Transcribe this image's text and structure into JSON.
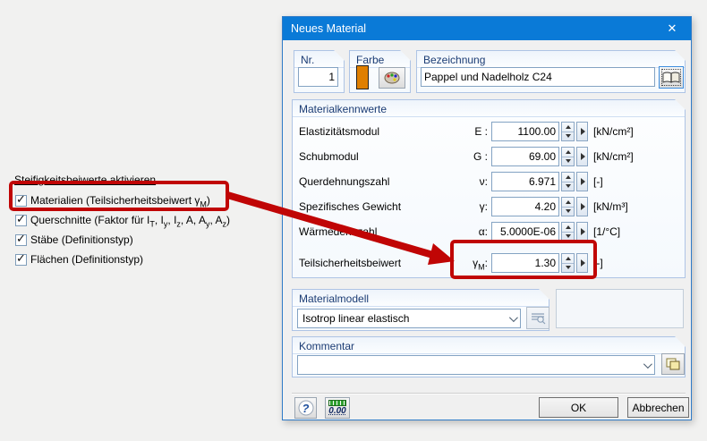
{
  "icons": {
    "check": "✓",
    "close": "✕",
    "help": "?"
  },
  "colors": {
    "title_bar": "#0a7ad7",
    "annotation_red": "#c00505",
    "material_swatch": "#e07f00"
  },
  "annotation": {
    "header_label": "Steifigkeitsbeiwerte aktivieren",
    "checkboxes": [
      {
        "checked": true,
        "label_parts": [
          {
            "t": "Materialien (Teilsicherheitsbeiwert "
          },
          {
            "t": "γ"
          },
          {
            "t": "M",
            "sub": true
          },
          {
            "t": ")"
          }
        ]
      },
      {
        "checked": true,
        "label_parts": [
          {
            "t": "Querschnitte (Faktor für I"
          },
          {
            "t": "T",
            "sub": true
          },
          {
            "t": ", I"
          },
          {
            "t": "y",
            "sub": true
          },
          {
            "t": ", I"
          },
          {
            "t": "z",
            "sub": true
          },
          {
            "t": ", A, A"
          },
          {
            "t": "y",
            "sub": true
          },
          {
            "t": ", A"
          },
          {
            "t": "z",
            "sub": true
          },
          {
            "t": ")"
          }
        ]
      },
      {
        "checked": true,
        "label_parts": [
          {
            "t": "Stäbe (Definitionstyp)"
          }
        ]
      },
      {
        "checked": true,
        "label_parts": [
          {
            "t": "Flächen (Definitionstyp)"
          }
        ]
      }
    ]
  },
  "dialog": {
    "title": "Neues Material",
    "nr": {
      "label": "Nr.",
      "value": "1"
    },
    "farbe": {
      "label": "Farbe"
    },
    "bezeichnung": {
      "label": "Bezeichnung",
      "value": "Pappel und Nadelholz C24"
    },
    "materialkennwerte": {
      "title": "Materialkennwerte",
      "rows": [
        {
          "label": "Elastizitätsmodul",
          "symbol_parts": [
            {
              "t": "E :"
            }
          ],
          "value": "1100.00",
          "unit": "[kN/cm²]"
        },
        {
          "label": "Schubmodul",
          "symbol_parts": [
            {
              "t": "G :"
            }
          ],
          "value": "69.00",
          "unit": "[kN/cm²]"
        },
        {
          "label": "Querdehnungszahl",
          "symbol_parts": [
            {
              "t": "ν:"
            }
          ],
          "value": "6.971",
          "unit": "[-]"
        },
        {
          "label": "Spezifisches Gewicht",
          "symbol_parts": [
            {
              "t": "γ:"
            }
          ],
          "value": "4.20",
          "unit": "[kN/m³]"
        },
        {
          "label": "Wärmedehnzahl",
          "symbol_parts": [
            {
              "t": "α:"
            }
          ],
          "value": "5.0000E-06",
          "unit": "[1/°C]"
        },
        {
          "label": "Teilsicherheitsbeiwert",
          "symbol_parts": [
            {
              "t": "γ"
            },
            {
              "t": "M",
              "sub": true
            },
            {
              "t": ":"
            }
          ],
          "value": "1.30",
          "unit": "[-]"
        }
      ]
    },
    "materialmodell": {
      "title": "Materialmodell",
      "selected": "Isotrop linear elastisch"
    },
    "kommentar": {
      "title": "Kommentar",
      "value": ""
    },
    "footer": {
      "ok": "OK",
      "cancel": "Abbrechen",
      "units_button": "0.00"
    }
  }
}
